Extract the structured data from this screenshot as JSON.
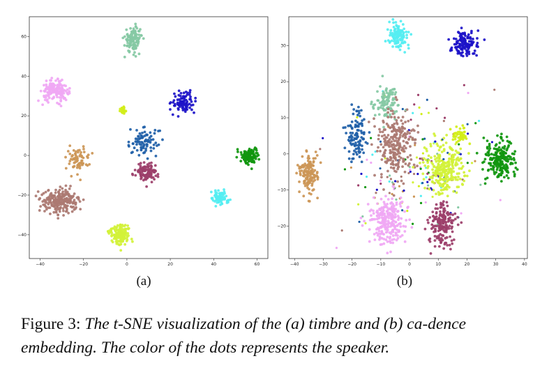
{
  "chart_data": [
    {
      "type": "scatter",
      "panel_label": "(a)",
      "xlim": [
        -45,
        65
      ],
      "ylim": [
        -52,
        70
      ],
      "xticks": [
        -40,
        -20,
        0,
        20,
        40,
        60
      ],
      "yticks": [
        -40,
        -20,
        0,
        20,
        40,
        60
      ],
      "grid": false,
      "clusters": [
        {
          "color": "#86c9a4",
          "cx": 3,
          "cy": 58.5,
          "sx": 2.0,
          "sy": 3.2,
          "n": 120
        },
        {
          "color": "#f0a8f4",
          "cx": -33,
          "cy": 32.5,
          "sx": 3.0,
          "sy": 2.4,
          "n": 170
        },
        {
          "color": "#d2ee1a",
          "cx": -1.5,
          "cy": 23,
          "sx": 1.0,
          "sy": 0.9,
          "n": 28
        },
        {
          "color": "#1c12c8",
          "cx": 26,
          "cy": 27,
          "sx": 2.6,
          "sy": 2.8,
          "n": 90
        },
        {
          "color": "#1f5fa8",
          "cx": 8,
          "cy": 7,
          "sx": 3.3,
          "sy": 3.3,
          "n": 85
        },
        {
          "color": "#cc9656",
          "cx": -23,
          "cy": -2,
          "sx": 3.0,
          "sy": 3.5,
          "n": 70
        },
        {
          "color": "#9c3f6a",
          "cx": 9,
          "cy": -8.5,
          "sx": 2.5,
          "sy": 2.4,
          "n": 110
        },
        {
          "color": "#10960e",
          "cx": 57,
          "cy": 0,
          "sx": 2.0,
          "sy": 2.0,
          "n": 120
        },
        {
          "color": "#ab7a72",
          "cx": -30.5,
          "cy": -23,
          "sx": 4.2,
          "sy": 2.9,
          "n": 230
        },
        {
          "color": "#55eef2",
          "cx": 43,
          "cy": -21.5,
          "sx": 1.8,
          "sy": 1.8,
          "n": 80
        },
        {
          "color": "#d2f23a",
          "cx": -3.5,
          "cy": -39.5,
          "sx": 2.5,
          "sy": 2.6,
          "n": 150
        }
      ]
    },
    {
      "type": "scatter",
      "panel_label": "(b)",
      "xlim": [
        -42,
        41
      ],
      "ylim": [
        -29,
        38
      ],
      "xticks": [
        -40,
        -30,
        -20,
        -10,
        0,
        10,
        20,
        30,
        40
      ],
      "yticks": [
        -20,
        -10,
        0,
        10,
        20,
        30
      ],
      "grid": false,
      "clusters": [
        {
          "color": "#55eef2",
          "cx": -4,
          "cy": 33,
          "sx": 1.6,
          "sy": 2.0,
          "n": 120
        },
        {
          "color": "#1c12c8",
          "cx": 19,
          "cy": 30.5,
          "sx": 2.4,
          "sy": 1.7,
          "n": 130
        },
        {
          "color": "#86c9a4",
          "cx": -8,
          "cy": 14.5,
          "sx": 2.2,
          "sy": 2.3,
          "n": 100
        },
        {
          "color": "#1f5fa8",
          "cx": -18.5,
          "cy": 5,
          "sx": 1.6,
          "sy": 3.2,
          "n": 110
        },
        {
          "color": "#ab7a72",
          "cx": -5,
          "cy": 2.5,
          "sx": 3.3,
          "sy": 4.3,
          "n": 250
        },
        {
          "color": "#cc9656",
          "cx": -35,
          "cy": -5.5,
          "sx": 1.8,
          "sy": 2.6,
          "n": 140
        },
        {
          "color": "#d2f23a",
          "cx": 12.5,
          "cy": -4,
          "sx": 3.6,
          "sy": 3.4,
          "n": 260
        },
        {
          "color": "#d2ee1a",
          "cx": 17.5,
          "cy": 5,
          "sx": 1.3,
          "sy": 1.2,
          "n": 50
        },
        {
          "color": "#10960e",
          "cx": 31.5,
          "cy": -1.5,
          "sx": 2.6,
          "sy": 2.8,
          "n": 200
        },
        {
          "color": "#f0a8f4",
          "cx": -7.5,
          "cy": -18.5,
          "sx": 3.0,
          "sy": 3.0,
          "n": 260
        },
        {
          "color": "#9c3f6a",
          "cx": 11.5,
          "cy": -19.5,
          "sx": 2.2,
          "sy": 3.1,
          "n": 170
        }
      ],
      "scattered_background_points": 170
    }
  ],
  "labels": {
    "panel_a": "(a)",
    "panel_b": "(b)"
  },
  "caption": {
    "lead": "Figure 3: ",
    "body": "The t-SNE visualization of the (a) timbre and (b) ca-dence embedding. The color of the dots represents the speaker."
  }
}
